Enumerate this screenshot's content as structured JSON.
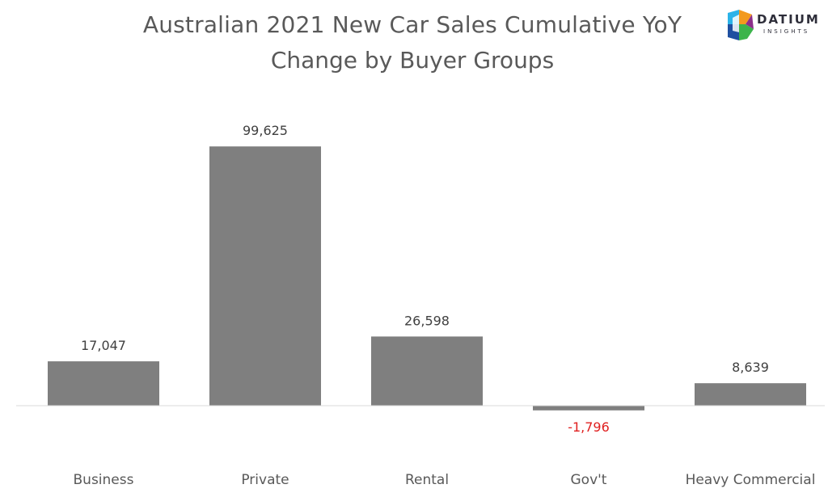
{
  "header": {
    "title_line_1": "Australian 2021 New Car Sales Cumulative YoY",
    "title_line_2": "Change by Buyer Groups"
  },
  "logo": {
    "word": "DATIUM",
    "sub": "INSIGHTS",
    "colors": [
      "#2bb3e8",
      "#f39a1e",
      "#8c2f8a",
      "#1f4fa0",
      "#3cb44b",
      "#e8233b"
    ]
  },
  "chart_data": {
    "type": "bar",
    "title": "Australian 2021 New Car Sales Cumulative YoY Change by Buyer Groups",
    "categories": [
      "Business",
      "Private",
      "Rental",
      "Gov't",
      "Heavy Commercial"
    ],
    "values": [
      17047,
      99625,
      26598,
      -1796,
      8639
    ],
    "value_labels": [
      "17,047",
      "99,625",
      "26,598",
      "-1,796",
      "8,639"
    ],
    "xlabel": "",
    "ylabel": "",
    "ylim": [
      -5000,
      110000
    ],
    "grid": false,
    "legend": "none",
    "bar_color": "#7f7f7f",
    "negative_label_color": "#e02020",
    "axis_color": "#d9d9d9"
  }
}
